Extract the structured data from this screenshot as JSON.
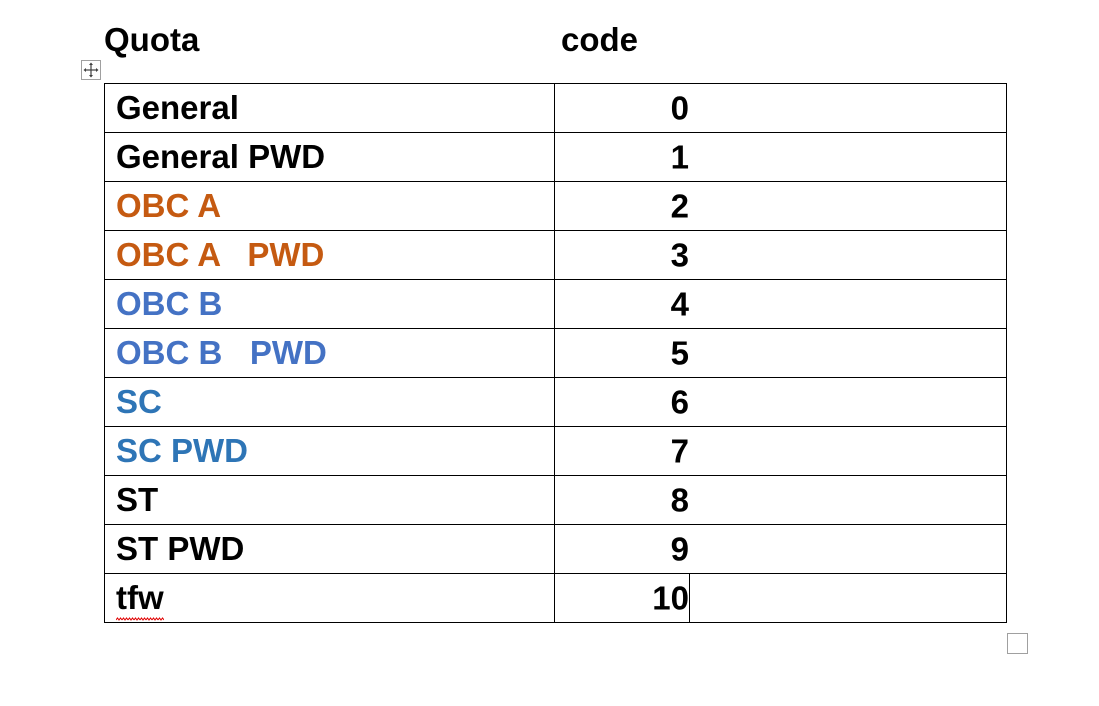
{
  "headers": {
    "quota": "Quota",
    "code": "code"
  },
  "colors": {
    "black": "#000000",
    "orange": "#c55a11",
    "blue": "#4472c4",
    "steel_blue": "#2e75b6"
  },
  "rows": [
    {
      "name": "General",
      "code": "0",
      "color": "#000000"
    },
    {
      "name": "General PWD",
      "code": "1",
      "color": "#000000"
    },
    {
      "name": "OBC A",
      "code": "2",
      "color": "#c55a11"
    },
    {
      "name": "OBC A   PWD",
      "code": "3",
      "color": "#c55a11"
    },
    {
      "name": "OBC B",
      "code": "4",
      "color": "#4472c4"
    },
    {
      "name": "OBC B   PWD",
      "code": "5",
      "color": "#4472c4"
    },
    {
      "name": "SC",
      "code": "6",
      "color": "#2e75b6"
    },
    {
      "name": "SC PWD",
      "code": "7",
      "color": "#2e75b6"
    },
    {
      "name": "ST",
      "code": "8",
      "color": "#000000"
    },
    {
      "name": "ST PWD",
      "code": "9",
      "color": "#000000"
    },
    {
      "name": "tfw",
      "code": "10",
      "color": "#000000",
      "spelling_error": true
    }
  ]
}
